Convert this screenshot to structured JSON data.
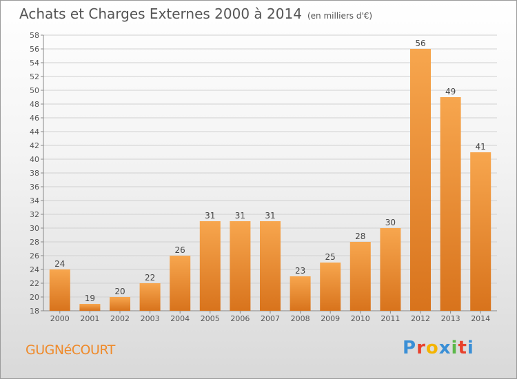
{
  "title": "Achats et Charges Externes 2000 à 2014",
  "subtitle": "(en milliers d'€)",
  "commune": "GUGNéCOURT",
  "logo": {
    "letters": [
      "P",
      "r",
      "o",
      "x",
      "i",
      "t",
      "i"
    ],
    "colors": [
      "#3a8fd6",
      "#e8412c",
      "#f4b400",
      "#3a8fd6",
      "#5cb84a",
      "#e8412c",
      "#3a8fd6"
    ]
  },
  "colors": {
    "bar_light": "#f7a64e",
    "bar_dark": "#d8731c",
    "accent": "#ef8a2a",
    "text": "#555555"
  },
  "chart_data": {
    "type": "bar",
    "title": "Achats et Charges Externes 2000 à 2014",
    "subtitle": "(en milliers d'€)",
    "categories": [
      "2000",
      "2001",
      "2002",
      "2003",
      "2004",
      "2005",
      "2006",
      "2007",
      "2008",
      "2009",
      "2010",
      "2011",
      "2012",
      "2013",
      "2014"
    ],
    "values": [
      24,
      19,
      20,
      22,
      26,
      31,
      31,
      31,
      23,
      25,
      28,
      30,
      56,
      49,
      41
    ],
    "ylim": [
      18,
      58
    ],
    "yticks": [
      18,
      20,
      22,
      24,
      26,
      28,
      30,
      32,
      34,
      36,
      38,
      40,
      42,
      44,
      46,
      48,
      50,
      52,
      54,
      56,
      58
    ],
    "grid": true,
    "data_labels": true
  }
}
